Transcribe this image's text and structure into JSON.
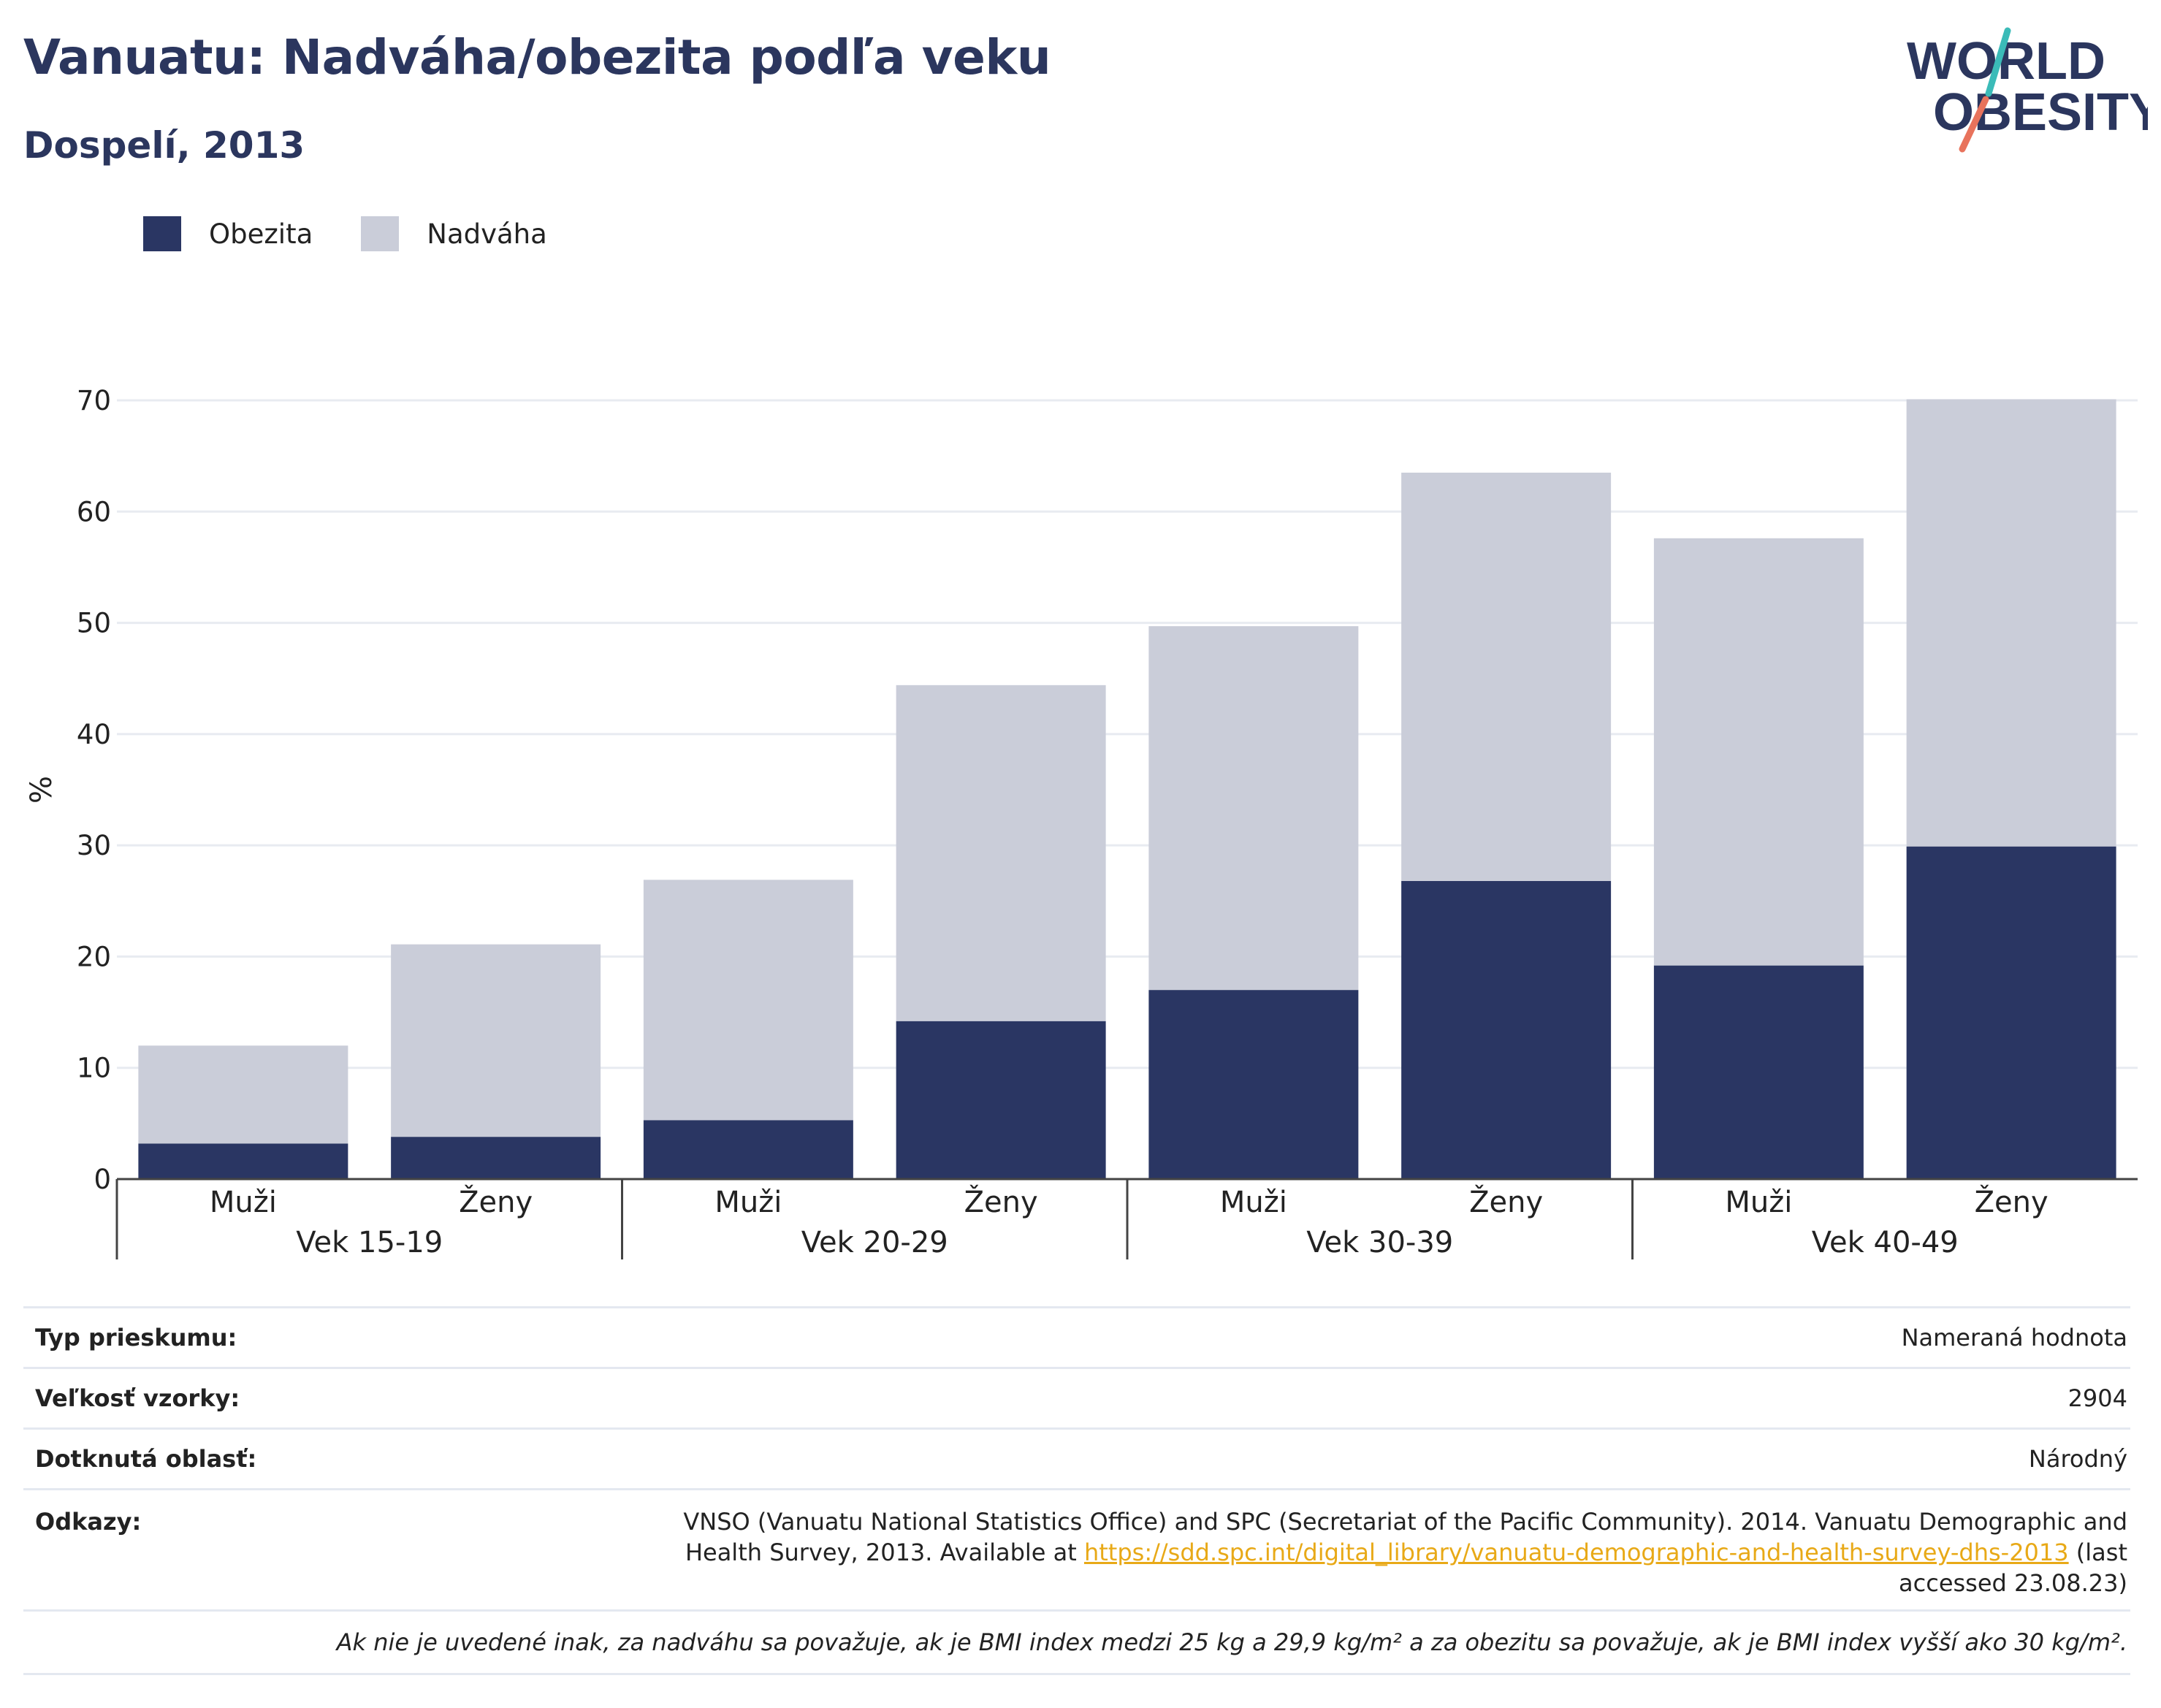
{
  "header": {
    "title": "Vanuatu: Nadváha/obezita podľa veku",
    "subtitle": "Dospelí, 2013"
  },
  "logo": {
    "line1": "WORLD",
    "line2": "OBESITY"
  },
  "colors": {
    "obesity": "#2a3663",
    "overweight": "#cacdd9",
    "title": "#2b365e",
    "link": "#e8a917"
  },
  "chart_data": {
    "type": "bar",
    "stacked": true,
    "ylabel": "%",
    "ylim": [
      0,
      70
    ],
    "yticks": [
      0,
      10,
      20,
      30,
      40,
      50,
      60,
      70
    ],
    "grid": true,
    "legend_position": "top-left",
    "groups": [
      "Vek 15-19",
      "Vek 20-29",
      "Vek 30-39",
      "Vek 40-49"
    ],
    "categories": [
      "Muži",
      "Ženy",
      "Muži",
      "Ženy",
      "Muži",
      "Ženy",
      "Muži",
      "Ženy"
    ],
    "series": [
      {
        "name": "Obezita",
        "values": [
          3.2,
          3.8,
          5.3,
          14.2,
          17.0,
          26.8,
          19.2,
          29.9
        ]
      },
      {
        "name": "Nadváha",
        "values": [
          8.8,
          17.3,
          21.6,
          30.2,
          32.7,
          36.7,
          38.4,
          40.2
        ]
      }
    ]
  },
  "info": {
    "survey_type_label": "Typ prieskumu:",
    "survey_type_value": "Nameraná hodnota",
    "sample_label": "Veľkosť vzorky:",
    "sample_value": "2904",
    "area_label": "Dotknutá oblasť:",
    "area_value": "Národný",
    "refs_label": "Odkazy:",
    "refs_text_before": "VNSO (Vanuatu National Statistics Office) and SPC (Secretariat of the Pacific Community). 2014. Vanuatu Demographic and Health Survey, 2013. Available at ",
    "refs_link": "https://sdd.spc.int/digital_library/vanuatu-demographic-and-health-survey-dhs-2013",
    "refs_text_after": " (last accessed 23.08.23)",
    "note": "Ak nie je uvedené inak, za nadváhu sa považuje, ak je BMI index medzi 25 kg a 29,9 kg/m² a za obezitu sa považuje, ak je BMI index vyšší ako 30 kg/m²."
  }
}
